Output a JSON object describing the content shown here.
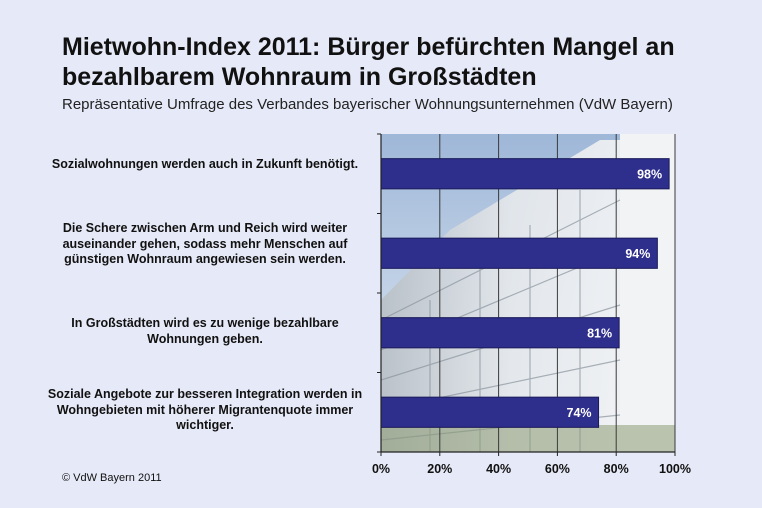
{
  "footer": {
    "copyright": "© VdW Bayern 2011"
  },
  "chart_data": {
    "type": "bar",
    "orientation": "horizontal",
    "title": "Mietwohn-Index 2011: Bürger befürchten Mangel an bezahlbarem Wohnraum in Großstädten",
    "subtitle": "Repräsentative Umfrage des Verbandes bayerischer Wohnungsunternehmen (VdW Bayern)",
    "categories": [
      "Sozialwohnungen werden auch in Zukunft benötigt.",
      "Die Schere zwischen Arm und Reich wird weiter auseinander gehen, sodass mehr Menschen auf günstigen Wohnraum angewiesen sein werden.",
      "In Großstädten wird es zu wenige bezahlbare Wohnungen geben.",
      "Soziale Angebote zur besseren Integration werden in Wohngebieten mit höherer Migrantenquote immer wichtiger."
    ],
    "values": [
      98,
      94,
      81,
      74
    ],
    "data_labels": [
      "98%",
      "94%",
      "81%",
      "74%"
    ],
    "xlim": [
      0,
      100
    ],
    "xticks": [
      0,
      20,
      40,
      60,
      80,
      100
    ],
    "xtick_labels": [
      "0%",
      "20%",
      "40%",
      "60%",
      "80%",
      "100%"
    ],
    "grid": true,
    "bar_color": "#2e2e8c",
    "background_image": "building-photo"
  }
}
